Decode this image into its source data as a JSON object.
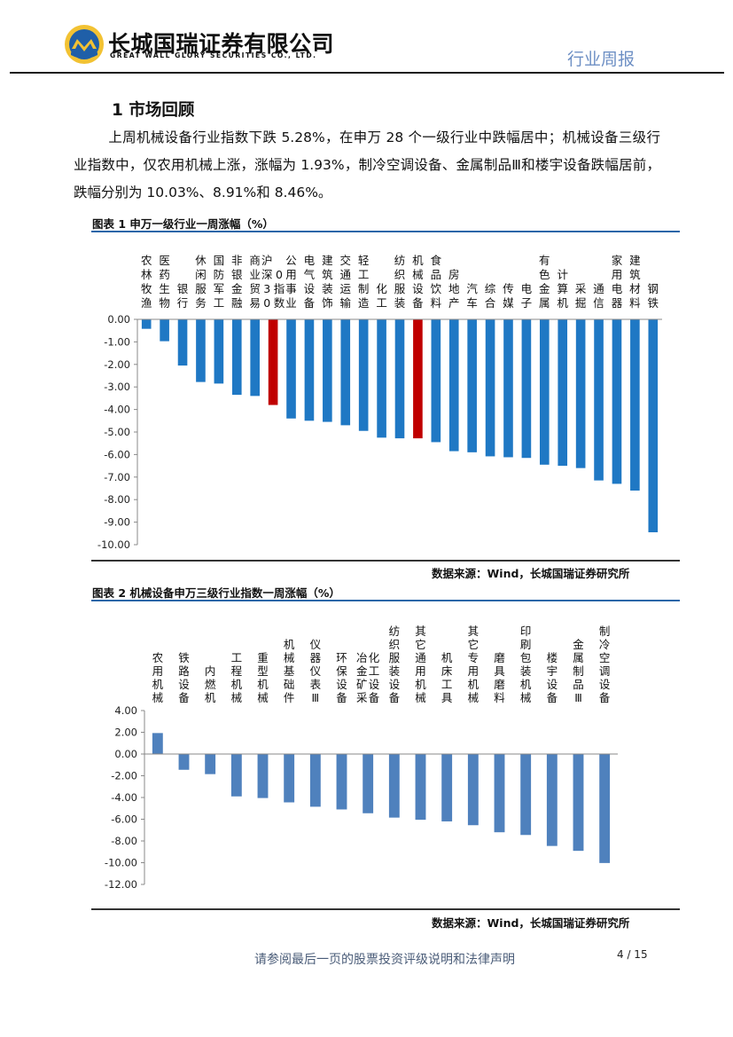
{
  "header": {
    "company_cn": "长城国瑞证券有限公司",
    "company_en": "GREAT WALL GLORY SECURITIES CO., LTD.",
    "report_type": "行业周报"
  },
  "section": {
    "title": "1  市场回顾"
  },
  "paragraph": "上周机械设备行业指数下跌 5.28%，在申万 28 个一级行业中跌幅居中；机械设备三级行业指数中，仅农用机械上涨，涨幅为 1.93%，制冷空调设备、金属制品Ⅲ和楼宇设备跌幅居前，跌幅分别为 10.03%、8.91%和 8.46%。",
  "colors": {
    "bar": "#1f78c4",
    "highlight": "#c00000",
    "bar2": "#4f81bd"
  },
  "chart_data": [
    {
      "type": "bar",
      "title": "图表 1  申万一级行业一周涨幅（%）",
      "categories": [
        "农林牧渔",
        "医药生物",
        "银行",
        "休闲服务",
        "国防军工",
        "非银金融",
        "商业贸易",
        "沪深300指数",
        "公用事业",
        "电气设备",
        "建筑装饰",
        "交通运输",
        "轻工制造",
        "化工",
        "纺织服装",
        "机械设备",
        "食品饮料",
        "房地产",
        "汽车",
        "综合",
        "传媒",
        "电子",
        "有色金属",
        "计算机",
        "采掘",
        "通信",
        "家用电器",
        "建筑材料",
        "钢铁"
      ],
      "values": [
        -0.42,
        -0.97,
        -2.05,
        -2.78,
        -2.85,
        -3.35,
        -3.4,
        -3.8,
        -4.4,
        -4.5,
        -4.55,
        -4.7,
        -4.95,
        -5.25,
        -5.28,
        -5.28,
        -5.45,
        -5.85,
        -5.9,
        -6.08,
        -6.12,
        -6.15,
        -6.45,
        -6.5,
        -6.6,
        -7.15,
        -7.3,
        -7.6,
        -9.45
      ],
      "highlight": [
        "沪深300指数",
        "机械设备"
      ],
      "ylim": [
        -10,
        0
      ],
      "yticks": [
        "0.00",
        "-1.00",
        "-2.00",
        "-3.00",
        "-4.00",
        "-5.00",
        "-6.00",
        "-7.00",
        "-8.00",
        "-9.00",
        "-10.00"
      ],
      "source": "数据来源：Wind，长城国瑞证券研究所"
    },
    {
      "type": "bar",
      "title": "图表 2  机械设备申万三级行业指数一周涨幅（%）",
      "categories": [
        "农用机械",
        "铁路设备",
        "内燃机",
        "工程机械",
        "重型机械",
        "机械基础件",
        "仪器仪表Ⅲ",
        "环保设备",
        "冶金矿采化工设备",
        "纺织服装设备",
        "其它通用机械",
        "机床工具",
        "其它专用机械",
        "磨具磨料",
        "印刷包装机械",
        "楼宇设备",
        "金属制品Ⅲ",
        "制冷空调设备"
      ],
      "values": [
        1.93,
        -1.45,
        -1.85,
        -3.9,
        -4.05,
        -4.45,
        -4.85,
        -5.1,
        -5.45,
        -5.85,
        -6.05,
        -6.2,
        -6.55,
        -7.2,
        -7.45,
        -8.46,
        -8.91,
        -10.03
      ],
      "ylim": [
        -12,
        4
      ],
      "yticks": [
        "4.00",
        "2.00",
        "0.00",
        "-2.00",
        "-4.00",
        "-6.00",
        "-8.00",
        "-10.00",
        "-12.00"
      ],
      "source": "数据来源：Wind，长城国瑞证券研究所"
    }
  ],
  "footer": {
    "disclaimer": "请参阅最后一页的股票投资评级说明和法律声明",
    "page": "4 / 15"
  }
}
